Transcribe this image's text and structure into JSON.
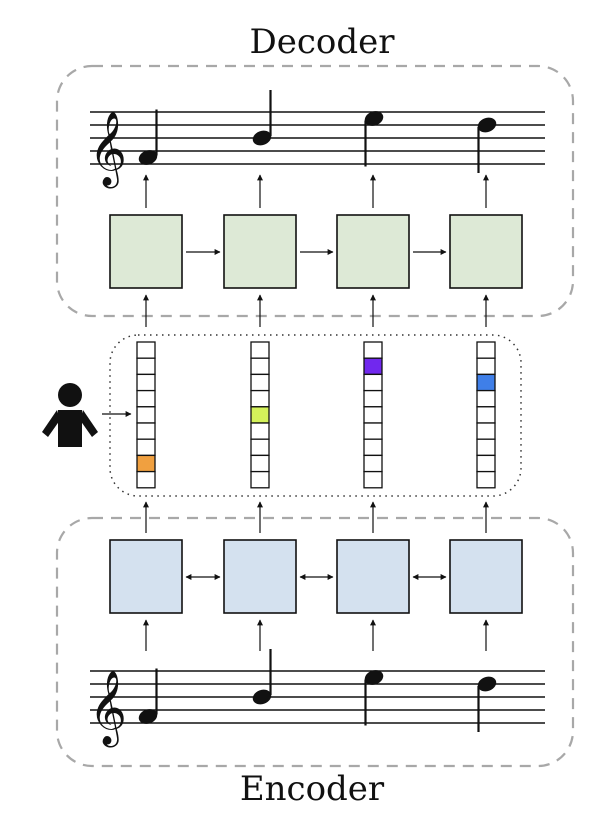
{
  "labels": {
    "decoder": "Decoder",
    "encoder": "Encoder"
  },
  "colors": {
    "decoder_block": "#dde9d6",
    "encoder_block": "#d4e1ef",
    "group_border": "#a8a8a8",
    "staff_line": "#111111",
    "person": "#111111",
    "latent_cells": [
      "#f0a040",
      "#d4f25a",
      "#7128ee",
      "#3f7fe8"
    ]
  },
  "icons": {
    "clef": "treble-clef-icon",
    "person": "person-icon"
  },
  "diagram": {
    "columns": 4,
    "latent_cells_per_column": 9,
    "highlighted_cell_index": [
      7,
      4,
      1,
      2
    ],
    "note_positions": [
      "low",
      "mid",
      "high",
      "high-mid"
    ],
    "decoder_links": "one-way",
    "encoder_links": "two-way"
  }
}
